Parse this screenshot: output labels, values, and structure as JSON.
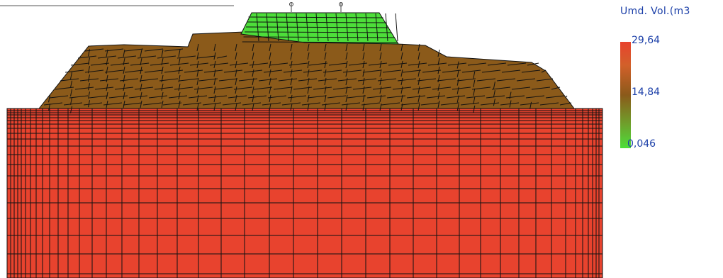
{
  "legend": {
    "title": "Umd. Vol.(m3",
    "max_label": "29,64",
    "mid_label": "14,84",
    "min_label": "0,046",
    "colors": {
      "high": "#e8432e",
      "mid": "#8b5a1a",
      "low": "#4dde3a"
    }
  },
  "model": {
    "foundation_color": "#e8432e",
    "embankment_color": "#8b5a1a",
    "crest_color": "#4dde3a",
    "mesh_line_color": "#111111",
    "crest_markers": [
      "marker-left",
      "marker-right"
    ]
  }
}
